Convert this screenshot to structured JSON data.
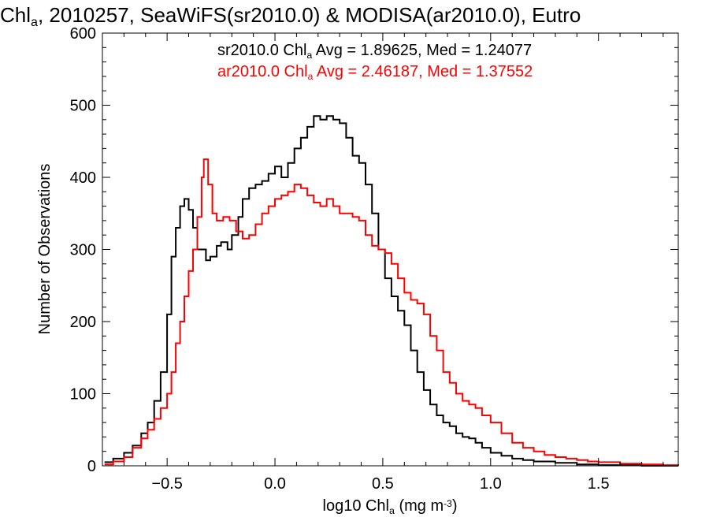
{
  "chart_data": {
    "type": "step-histogram",
    "title": {
      "parts": [
        {
          "text": "Chl",
          "style": "normal"
        },
        {
          "text": "a",
          "style": "sub"
        },
        {
          "text": ", 2010257, SeaWiFS(sr2010.0) & MODISA(ar2010.0), Eutro",
          "style": "normal"
        }
      ]
    },
    "xlabel": {
      "parts": [
        {
          "text": "log10 Chl",
          "style": "normal"
        },
        {
          "text": "a",
          "style": "sub"
        },
        {
          "text": " (mg m",
          "style": "normal"
        },
        {
          "text": "-3",
          "style": "sup"
        },
        {
          "text": ")",
          "style": "normal"
        }
      ]
    },
    "ylabel": "Number of Observations",
    "xlim": [
      -0.8,
      1.87
    ],
    "ylim": [
      0,
      600
    ],
    "x_ticks": [
      -0.5,
      0.0,
      0.5,
      1.0,
      1.5
    ],
    "x_tick_labels": [
      "−0.5",
      "0.0",
      "0.5",
      "1.0",
      "1.5"
    ],
    "y_ticks": [
      0,
      100,
      200,
      300,
      400,
      500,
      600
    ],
    "y_tick_labels": [
      "0",
      "100",
      "200",
      "300",
      "400",
      "500",
      "600"
    ],
    "legend_position": "top-right",
    "series": [
      {
        "name": "sr2010.0",
        "color": "#000000",
        "legend_parts": [
          {
            "text": "sr2010.0 Chl",
            "style": "normal"
          },
          {
            "text": "a",
            "style": "sub"
          },
          {
            "text": " Avg = 1.89625, Med = 1.24077",
            "style": "normal"
          }
        ],
        "points": [
          [
            -0.79,
            5
          ],
          [
            -0.75,
            10
          ],
          [
            -0.7,
            18
          ],
          [
            -0.66,
            28
          ],
          [
            -0.62,
            45
          ],
          [
            -0.59,
            60
          ],
          [
            -0.56,
            90
          ],
          [
            -0.53,
            130
          ],
          [
            -0.5,
            210
          ],
          [
            -0.48,
            290
          ],
          [
            -0.46,
            330
          ],
          [
            -0.44,
            360
          ],
          [
            -0.42,
            370
          ],
          [
            -0.4,
            355
          ],
          [
            -0.38,
            330
          ],
          [
            -0.36,
            300
          ],
          [
            -0.34,
            300
          ],
          [
            -0.32,
            285
          ],
          [
            -0.3,
            290
          ],
          [
            -0.27,
            305
          ],
          [
            -0.25,
            310
          ],
          [
            -0.22,
            300
          ],
          [
            -0.2,
            320
          ],
          [
            -0.17,
            345
          ],
          [
            -0.15,
            370
          ],
          [
            -0.12,
            385
          ],
          [
            -0.09,
            390
          ],
          [
            -0.06,
            395
          ],
          [
            -0.03,
            405
          ],
          [
            0.0,
            415
          ],
          [
            0.03,
            400
          ],
          [
            0.06,
            420
          ],
          [
            0.09,
            440
          ],
          [
            0.12,
            455
          ],
          [
            0.15,
            470
          ],
          [
            0.18,
            485
          ],
          [
            0.21,
            480
          ],
          [
            0.24,
            485
          ],
          [
            0.27,
            480
          ],
          [
            0.3,
            475
          ],
          [
            0.33,
            455
          ],
          [
            0.36,
            430
          ],
          [
            0.39,
            420
          ],
          [
            0.42,
            390
          ],
          [
            0.45,
            350
          ],
          [
            0.48,
            300
          ],
          [
            0.51,
            260
          ],
          [
            0.54,
            235
          ],
          [
            0.57,
            215
          ],
          [
            0.6,
            195
          ],
          [
            0.63,
            160
          ],
          [
            0.66,
            130
          ],
          [
            0.69,
            105
          ],
          [
            0.72,
            85
          ],
          [
            0.75,
            70
          ],
          [
            0.78,
            60
          ],
          [
            0.81,
            55
          ],
          [
            0.84,
            45
          ],
          [
            0.87,
            40
          ],
          [
            0.9,
            38
          ],
          [
            0.93,
            32
          ],
          [
            0.96,
            25
          ],
          [
            1.0,
            18
          ],
          [
            1.05,
            14
          ],
          [
            1.1,
            10
          ],
          [
            1.15,
            8
          ],
          [
            1.2,
            6
          ],
          [
            1.3,
            4
          ],
          [
            1.4,
            2
          ],
          [
            1.5,
            1
          ],
          [
            1.6,
            1
          ],
          [
            1.7,
            0
          ],
          [
            1.87,
            0
          ]
        ]
      },
      {
        "name": "ar2010.0",
        "color": "#ff0000",
        "legend_parts": [
          {
            "text": "ar2010.0 Chl",
            "style": "normal"
          },
          {
            "text": "a",
            "style": "sub"
          },
          {
            "text": " Avg = 2.46187, Med = 1.37552",
            "style": "normal"
          }
        ],
        "points": [
          [
            -0.79,
            2
          ],
          [
            -0.75,
            6
          ],
          [
            -0.7,
            12
          ],
          [
            -0.66,
            25
          ],
          [
            -0.62,
            38
          ],
          [
            -0.59,
            50
          ],
          [
            -0.56,
            65
          ],
          [
            -0.53,
            80
          ],
          [
            -0.5,
            100
          ],
          [
            -0.48,
            130
          ],
          [
            -0.46,
            170
          ],
          [
            -0.44,
            200
          ],
          [
            -0.42,
            235
          ],
          [
            -0.4,
            270
          ],
          [
            -0.38,
            300
          ],
          [
            -0.36,
            345
          ],
          [
            -0.34,
            400
          ],
          [
            -0.33,
            425
          ],
          [
            -0.31,
            390
          ],
          [
            -0.29,
            350
          ],
          [
            -0.27,
            340
          ],
          [
            -0.24,
            345
          ],
          [
            -0.21,
            340
          ],
          [
            -0.18,
            325
          ],
          [
            -0.15,
            315
          ],
          [
            -0.12,
            320
          ],
          [
            -0.09,
            335
          ],
          [
            -0.06,
            350
          ],
          [
            -0.03,
            360
          ],
          [
            0.0,
            370
          ],
          [
            0.03,
            375
          ],
          [
            0.06,
            380
          ],
          [
            0.09,
            390
          ],
          [
            0.12,
            385
          ],
          [
            0.15,
            375
          ],
          [
            0.18,
            365
          ],
          [
            0.21,
            360
          ],
          [
            0.24,
            370
          ],
          [
            0.27,
            360
          ],
          [
            0.3,
            350
          ],
          [
            0.33,
            350
          ],
          [
            0.36,
            345
          ],
          [
            0.39,
            340
          ],
          [
            0.42,
            320
          ],
          [
            0.45,
            305
          ],
          [
            0.48,
            300
          ],
          [
            0.51,
            295
          ],
          [
            0.54,
            280
          ],
          [
            0.57,
            260
          ],
          [
            0.6,
            240
          ],
          [
            0.63,
            230
          ],
          [
            0.66,
            225
          ],
          [
            0.69,
            210
          ],
          [
            0.72,
            180
          ],
          [
            0.75,
            160
          ],
          [
            0.78,
            130
          ],
          [
            0.81,
            115
          ],
          [
            0.84,
            100
          ],
          [
            0.87,
            90
          ],
          [
            0.9,
            85
          ],
          [
            0.93,
            80
          ],
          [
            0.96,
            70
          ],
          [
            1.0,
            60
          ],
          [
            1.05,
            45
          ],
          [
            1.1,
            32
          ],
          [
            1.15,
            25
          ],
          [
            1.2,
            20
          ],
          [
            1.25,
            15
          ],
          [
            1.3,
            12
          ],
          [
            1.35,
            10
          ],
          [
            1.4,
            8
          ],
          [
            1.45,
            6
          ],
          [
            1.5,
            5
          ],
          [
            1.6,
            3
          ],
          [
            1.7,
            2
          ],
          [
            1.8,
            1
          ],
          [
            1.87,
            0
          ]
        ]
      }
    ]
  }
}
